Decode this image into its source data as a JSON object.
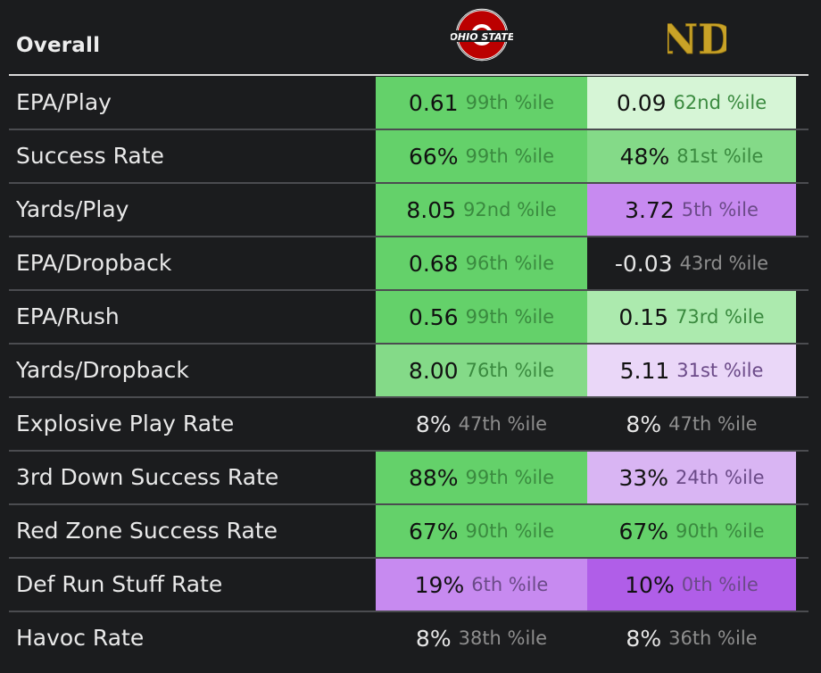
{
  "header": {
    "title": "Overall",
    "teams": [
      {
        "name": "Ohio State",
        "logo_text": "OHIO STATE"
      },
      {
        "name": "Notre Dame",
        "logo_text": "ND"
      }
    ]
  },
  "colors": {
    "background": "#1b1c1e",
    "green_strong": "#64d16a",
    "green_mid": "#84da88",
    "green_light": "#aceaae",
    "green_pale": "#d6f5d6",
    "purple_strong": "#b05ee8",
    "purple_mid": "#c78af0",
    "purple_light": "#d9b5f3",
    "purple_pale": "#ead7f8",
    "neutral": "transparent"
  },
  "rows": [
    {
      "label": "EPA/Play",
      "osu": {
        "value": "0.61",
        "pct": "99th %ile",
        "tone": "green_strong"
      },
      "nd": {
        "value": "0.09",
        "pct": "62nd %ile",
        "tone": "green_pale"
      }
    },
    {
      "label": "Success Rate",
      "osu": {
        "value": "66%",
        "pct": "99th %ile",
        "tone": "green_strong"
      },
      "nd": {
        "value": "48%",
        "pct": "81st %ile",
        "tone": "green_mid"
      }
    },
    {
      "label": "Yards/Play",
      "osu": {
        "value": "8.05",
        "pct": "92nd %ile",
        "tone": "green_strong"
      },
      "nd": {
        "value": "3.72",
        "pct": "5th %ile",
        "tone": "purple_mid"
      }
    },
    {
      "label": "EPA/Dropback",
      "osu": {
        "value": "0.68",
        "pct": "96th %ile",
        "tone": "green_strong"
      },
      "nd": {
        "value": "-0.03",
        "pct": "43rd %ile",
        "tone": "neutral"
      }
    },
    {
      "label": "EPA/Rush",
      "osu": {
        "value": "0.56",
        "pct": "99th %ile",
        "tone": "green_strong"
      },
      "nd": {
        "value": "0.15",
        "pct": "73rd %ile",
        "tone": "green_light"
      }
    },
    {
      "label": "Yards/Dropback",
      "osu": {
        "value": "8.00",
        "pct": "76th %ile",
        "tone": "green_mid"
      },
      "nd": {
        "value": "5.11",
        "pct": "31st %ile",
        "tone": "purple_pale"
      }
    },
    {
      "label": "Explosive Play Rate",
      "osu": {
        "value": "8%",
        "pct": "47th %ile",
        "tone": "neutral"
      },
      "nd": {
        "value": "8%",
        "pct": "47th %ile",
        "tone": "neutral"
      }
    },
    {
      "label": "3rd Down Success Rate",
      "osu": {
        "value": "88%",
        "pct": "99th %ile",
        "tone": "green_strong"
      },
      "nd": {
        "value": "33%",
        "pct": "24th %ile",
        "tone": "purple_light"
      }
    },
    {
      "label": "Red Zone Success Rate",
      "osu": {
        "value": "67%",
        "pct": "90th %ile",
        "tone": "green_strong"
      },
      "nd": {
        "value": "67%",
        "pct": "90th %ile",
        "tone": "green_strong"
      }
    },
    {
      "label": "Def Run Stuff Rate",
      "osu": {
        "value": "19%",
        "pct": "6th %ile",
        "tone": "purple_mid"
      },
      "nd": {
        "value": "10%",
        "pct": "0th %ile",
        "tone": "purple_strong"
      }
    },
    {
      "label": "Havoc Rate",
      "osu": {
        "value": "8%",
        "pct": "38th %ile",
        "tone": "neutral"
      },
      "nd": {
        "value": "8%",
        "pct": "36th %ile",
        "tone": "neutral"
      }
    }
  ]
}
